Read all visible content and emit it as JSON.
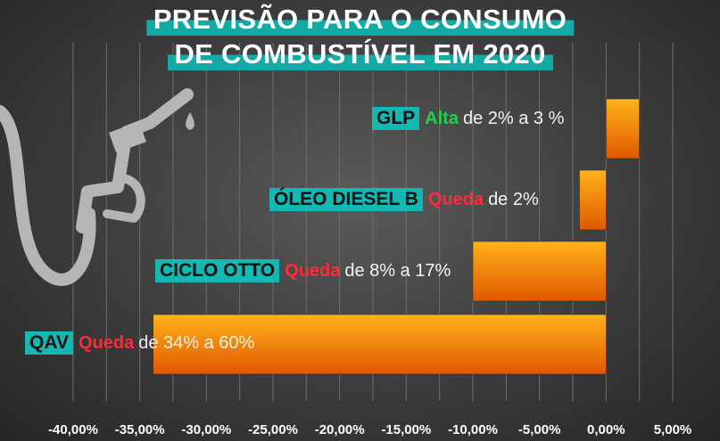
{
  "title": {
    "line1": "PREVISÃO PARA O CONSUMO",
    "line2": "DE COMBUSTÍVEL EM 2020"
  },
  "colors": {
    "accent_teal": "#13b8b3",
    "bar_top": "#ffb21a",
    "bar_bottom": "#e05800",
    "alta": "#20d050",
    "queda": "#ff2a3a"
  },
  "icons": [
    "fuel-nozzle-icon",
    "fuel-drop-icon"
  ],
  "rows": [
    {
      "category": "GLP",
      "trend": "Alta",
      "trend_color": "#20d050",
      "range_text": "de 2% a 3 %"
    },
    {
      "category": "ÓLEO DIESEL B",
      "trend": "Queda",
      "trend_color": "#ff2a3a",
      "range_text": "de 2%"
    },
    {
      "category": "CICLO OTTO",
      "trend": "Queda",
      "trend_color": "#ff2a3a",
      "range_text": "de 8% a 17%"
    },
    {
      "category": "QAV",
      "trend": "Queda",
      "trend_color": "#ff2a3a",
      "range_text": "de 34% a 60%"
    }
  ],
  "chart_data": {
    "type": "bar",
    "orientation": "horizontal",
    "title": "PREVISÃO PARA O CONSUMO DE COMBUSTÍVEL EM 2020",
    "categories": [
      "GLP",
      "ÓLEO DIESEL B",
      "CICLO OTTO",
      "QAV"
    ],
    "values": [
      2.5,
      -2,
      -10,
      -34
    ],
    "unit": "%",
    "xlim": [
      -40,
      5
    ],
    "x_ticks": [
      -40,
      -35,
      -30,
      -25,
      -20,
      -15,
      -10,
      -5,
      0,
      5
    ],
    "x_tick_labels": [
      "-40,00%",
      "-35,00%",
      "-30,00%",
      "-25,00%",
      "-20,00%",
      "-15,00%",
      "-10,00%",
      "-5,00%",
      "0,00%",
      "5,00%"
    ],
    "grid": true
  }
}
